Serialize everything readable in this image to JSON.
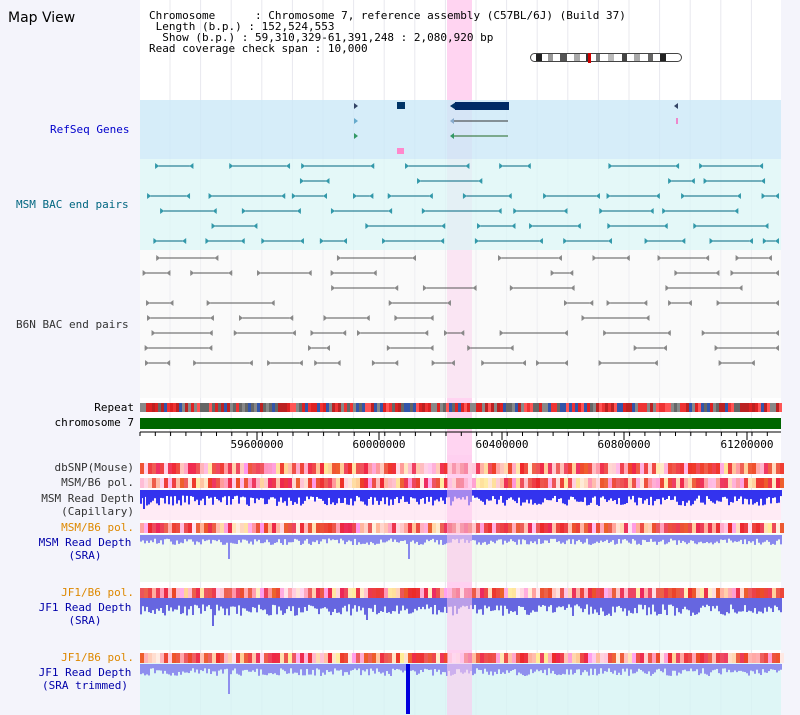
{
  "title": "Map View",
  "info": {
    "chromosome_label": "Chromosome",
    "chromosome_value": "Chromosome 7, reference assembly (C57BL/6J) (Build 37)",
    "length_label": "Length (b.p.)",
    "length_value": "152,524,553",
    "show_label": "Show (b.p.)",
    "show_value": "59,310,329-61,391,248 : 2,080,920 bp",
    "coverage_label": "Read coverage check span",
    "coverage_value": "10,000"
  },
  "tracks": {
    "refseq": "RefSeq Genes",
    "msm_bac": "MSM BAC end pairs",
    "b6n_bac": "B6N BAC end pairs",
    "repeat": "Repeat",
    "chromosome": "chromosome 7",
    "dbsnp": "dbSNP(Mouse)",
    "msm_b6_pol_1": "MSM/B6 pol.",
    "msm_depth_cap_1": "MSM Read Depth",
    "msm_depth_cap_2": "(Capillary)",
    "msm_b6_pol_2": "MSM/B6 pol.",
    "msm_depth_sra_1": "MSM Read Depth",
    "msm_depth_sra_2": "(SRA)",
    "jf1_b6_pol_1": "JF1/B6 pol.",
    "jf1_depth_sra_1": "JF1 Read Depth",
    "jf1_depth_sra_2": "(SRA)",
    "jf1_b6_pol_2": "JF1/B6 pol.",
    "jf1_depth_trim_1": "JF1 Read Depth",
    "jf1_depth_trim_2": "(SRA trimmed)"
  },
  "ruler": {
    "ticks": [
      "59600000",
      "60000000",
      "60400000",
      "60800000",
      "61200000"
    ]
  },
  "colors": {
    "refseq_label": "#0000cc",
    "msm_label": "#006680",
    "b6n_label": "#333333",
    "pol_orange": "#dd8800",
    "depth_blue": "#0000aa",
    "highlight": "#ffccee",
    "chromosome_green": "#006600"
  }
}
